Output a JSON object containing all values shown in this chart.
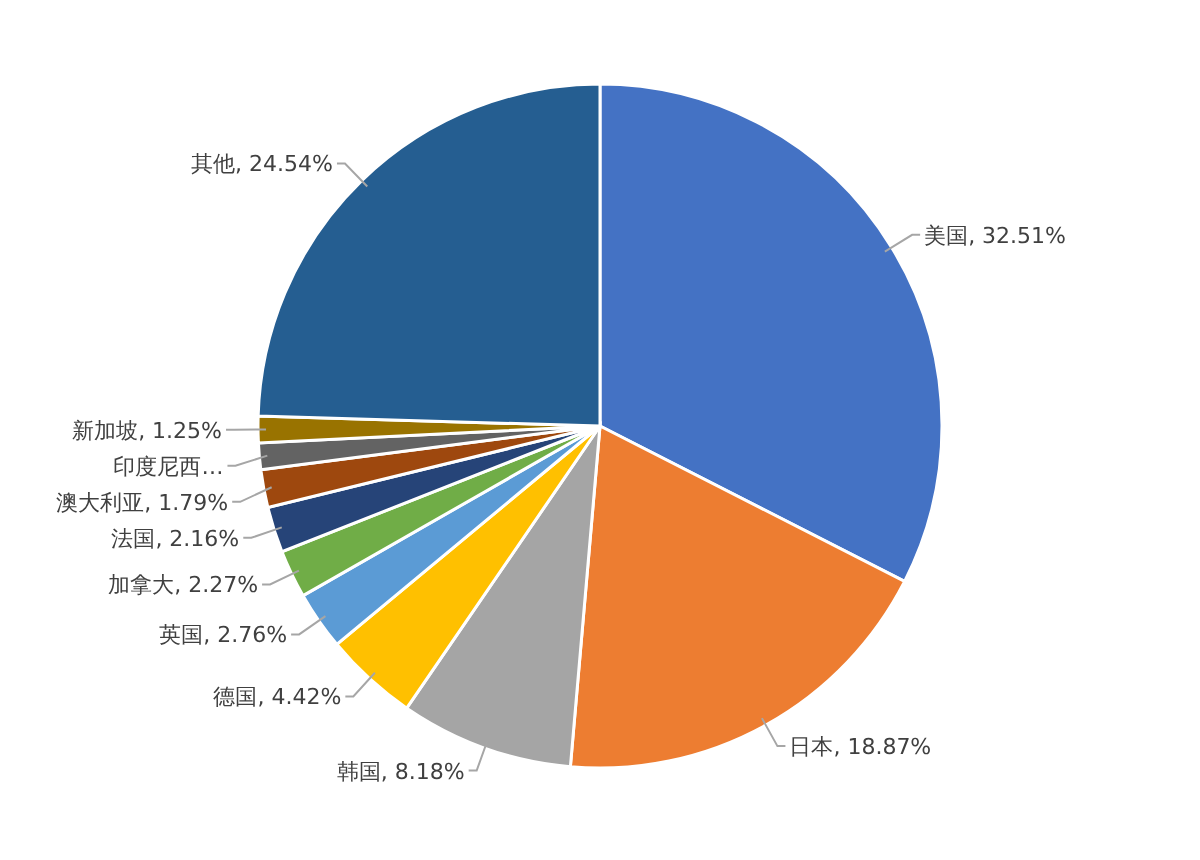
{
  "chart_data": {
    "type": "pie",
    "categories": [
      "美国",
      "日本",
      "韩国",
      "德国",
      "英国",
      "加拿大",
      "法国",
      "澳大利亚",
      "印度尼西…",
      "新加坡",
      "其他"
    ],
    "values": [
      32.51,
      18.87,
      8.18,
      4.42,
      2.76,
      2.27,
      2.16,
      1.79,
      1.25,
      1.25,
      24.54
    ],
    "colors": [
      "#4472c4",
      "#ed7d31",
      "#a5a5a5",
      "#ffc000",
      "#5b9bd5",
      "#70ad47",
      "#264478",
      "#9e480e",
      "#636363",
      "#997300",
      "#255e91"
    ],
    "value_labels": [
      ", 32.51%",
      ", 18.87%",
      ", 8.18%",
      ", 4.42%",
      ", 2.76%",
      ", 2.27%",
      ", 2.16%",
      ", 1.79%",
      null,
      ", 1.25%",
      ", 24.54%"
    ]
  }
}
